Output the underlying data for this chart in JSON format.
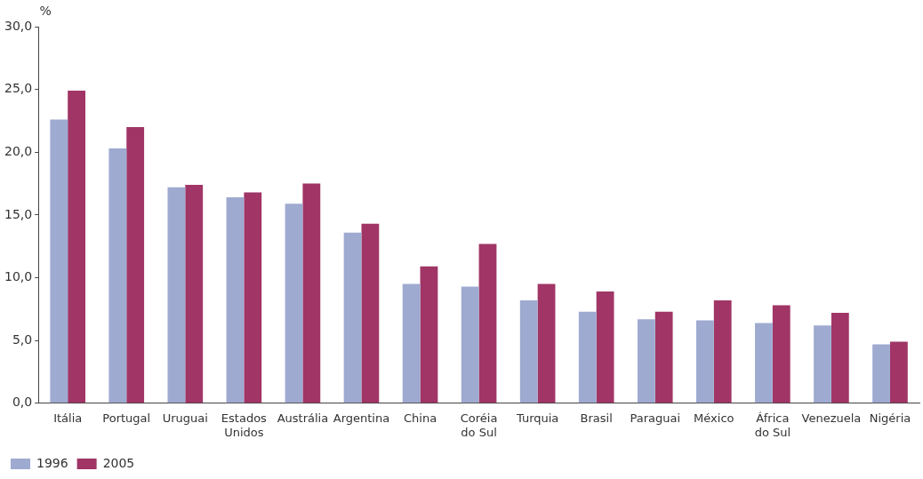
{
  "chart_data": {
    "type": "bar",
    "ylabel": "%",
    "categories": [
      "Itália",
      "Portugal",
      "Uruguai",
      "Estados Unidos",
      "Austrália",
      "Argentina",
      "China",
      "Coréia do Sul",
      "Turquia",
      "Brasil",
      "Paraguai",
      "México",
      "África do Sul",
      "Venezuela",
      "Nigéria"
    ],
    "series": [
      {
        "name": "1996",
        "color": "#9eaad0",
        "values": [
          22.6,
          20.3,
          17.2,
          16.4,
          15.9,
          13.6,
          9.5,
          9.3,
          8.2,
          7.3,
          6.7,
          6.6,
          6.4,
          6.2,
          4.7
        ]
      },
      {
        "name": "2005",
        "color": "#a03566",
        "values": [
          24.9,
          22.0,
          17.4,
          16.8,
          17.5,
          14.3,
          10.9,
          12.7,
          9.5,
          8.9,
          7.3,
          8.2,
          7.8,
          7.2,
          4.9
        ]
      }
    ],
    "ylim": [
      0,
      30
    ],
    "yticks": [
      {
        "value": 0,
        "label": "0,0"
      },
      {
        "value": 5,
        "label": "5,0"
      },
      {
        "value": 10,
        "label": "10,0"
      },
      {
        "value": 15,
        "label": "15,0"
      },
      {
        "value": 20,
        "label": "20,0"
      },
      {
        "value": 25,
        "label": "25,0"
      },
      {
        "value": 30,
        "label": "30,0"
      }
    ],
    "grid": false,
    "legend": "bottom left"
  }
}
